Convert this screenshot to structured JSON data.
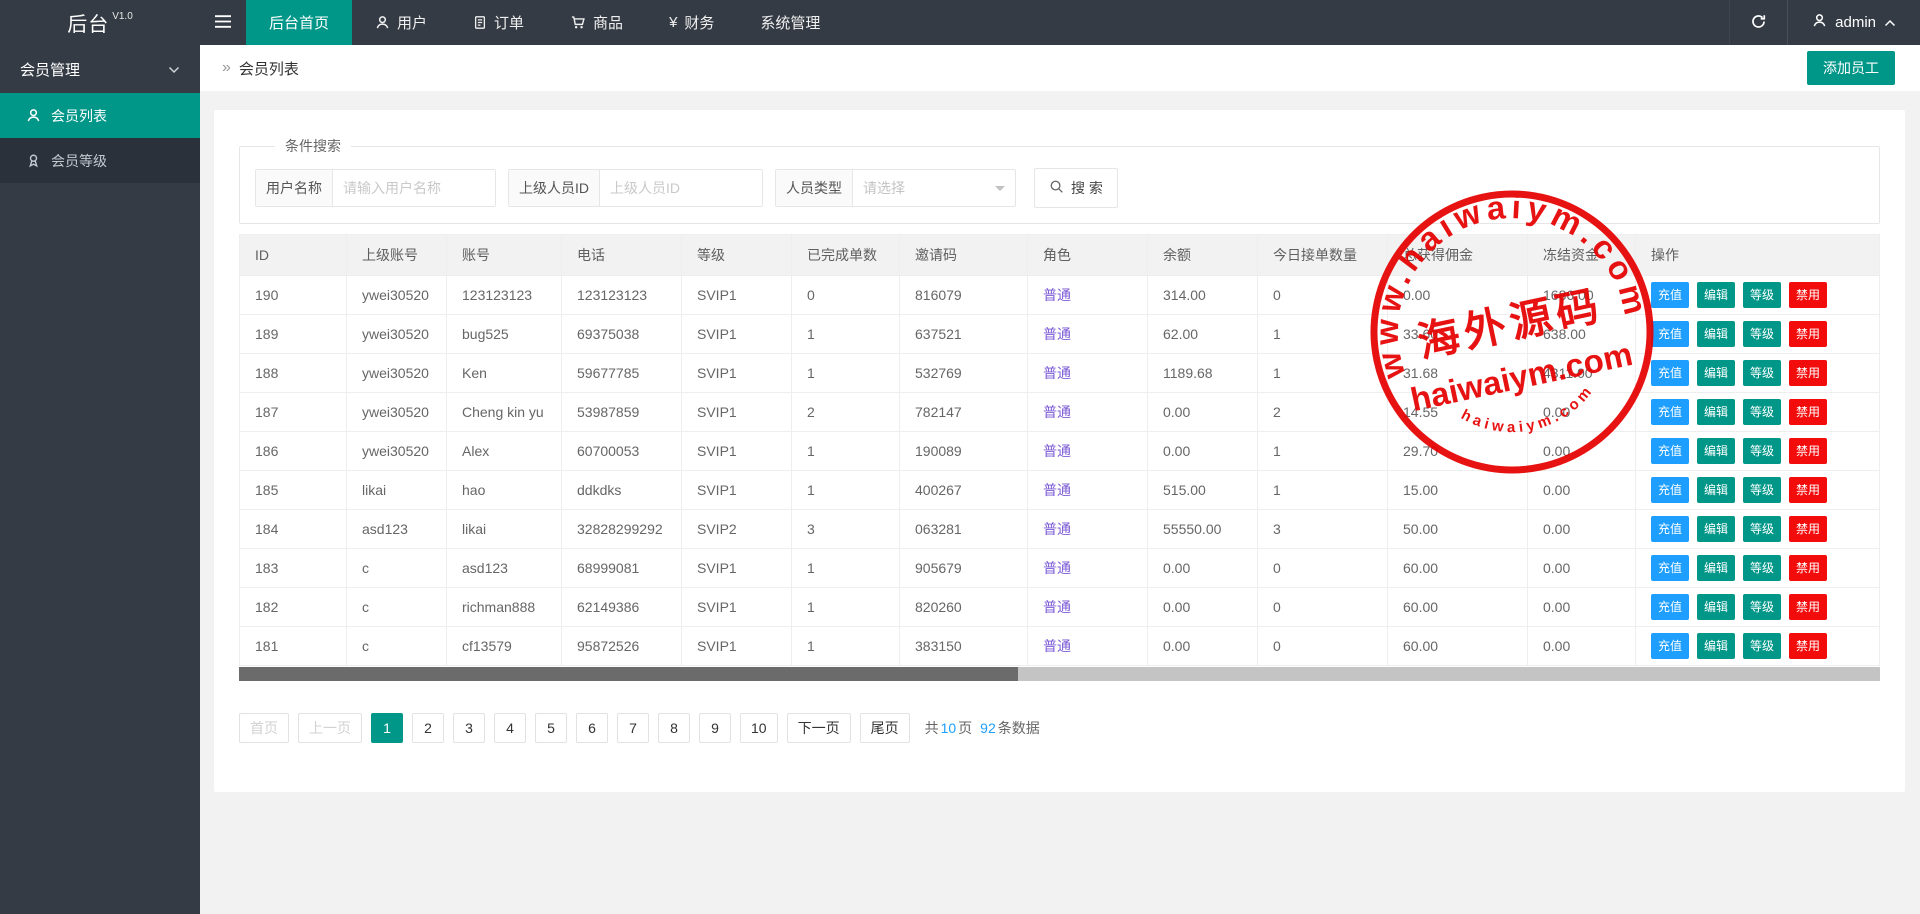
{
  "header": {
    "brand": "后台",
    "version": "V1.0",
    "nav": [
      {
        "name": "nav-home",
        "label": "后台首页",
        "icon": null,
        "active": true
      },
      {
        "name": "nav-users",
        "label": "用户",
        "icon": "user-icon",
        "active": false
      },
      {
        "name": "nav-orders",
        "label": "订单",
        "icon": "doc-icon",
        "active": false
      },
      {
        "name": "nav-goods",
        "label": "商品",
        "icon": "cart-icon",
        "active": false
      },
      {
        "name": "nav-finance",
        "label": "财务",
        "icon": "yen-icon",
        "active": false
      },
      {
        "name": "nav-system",
        "label": "系统管理",
        "icon": null,
        "active": false
      }
    ],
    "user": "admin"
  },
  "sidebar": {
    "group_label": "会员管理",
    "items": [
      {
        "name": "sidebar-item-member-list",
        "label": "会员列表",
        "icon": "user-icon",
        "active": true
      },
      {
        "name": "sidebar-item-member-level",
        "label": "会员等级",
        "icon": "medal-icon",
        "active": false
      }
    ]
  },
  "breadcrumb": {
    "separator": "»",
    "title": "会员列表"
  },
  "toolbar": {
    "add_button": "添加员工"
  },
  "search": {
    "legend": "条件搜索",
    "fields": [
      {
        "label": "用户名称",
        "placeholder": "请输入用户名称",
        "type": "input"
      },
      {
        "label": "上级人员ID",
        "placeholder": "上级人员ID",
        "type": "input"
      },
      {
        "label": "人员类型",
        "placeholder": "请选择",
        "type": "select"
      }
    ],
    "button_label": "搜 索"
  },
  "table": {
    "columns": [
      "ID",
      "上级账号",
      "账号",
      "电话",
      "等级",
      "已完成单数",
      "邀请码",
      "角色",
      "余额",
      "今日接单数量",
      "总获得佣金",
      "冻结资金",
      "操作"
    ],
    "rows": [
      {
        "id": "190",
        "parent_account": "ywei30520",
        "account": "123123123",
        "phone": "123123123",
        "level": "SVIP1",
        "completed_orders": "0",
        "invite_code": "816079",
        "role": "普通",
        "balance": "314.00",
        "today_orders": "0",
        "total_commission": "0.00",
        "frozen_amount": "1686.00"
      },
      {
        "id": "189",
        "parent_account": "ywei30520",
        "account": "bug525",
        "phone": "69375038",
        "level": "SVIP1",
        "completed_orders": "1",
        "invite_code": "637521",
        "role": "普通",
        "balance": "62.00",
        "today_orders": "1",
        "total_commission": "33.60",
        "frozen_amount": "638.00"
      },
      {
        "id": "188",
        "parent_account": "ywei30520",
        "account": "Ken",
        "phone": "59677785",
        "level": "SVIP1",
        "completed_orders": "1",
        "invite_code": "532769",
        "role": "普通",
        "balance": "1189.68",
        "today_orders": "1",
        "total_commission": "31.68",
        "frozen_amount": "4311.00"
      },
      {
        "id": "187",
        "parent_account": "ywei30520",
        "account": "Cheng kin yu",
        "phone": "53987859",
        "level": "SVIP1",
        "completed_orders": "2",
        "invite_code": "782147",
        "role": "普通",
        "balance": "0.00",
        "today_orders": "2",
        "total_commission": "14.55",
        "frozen_amount": "0.00"
      },
      {
        "id": "186",
        "parent_account": "ywei30520",
        "account": "Alex",
        "phone": "60700053",
        "level": "SVIP1",
        "completed_orders": "1",
        "invite_code": "190089",
        "role": "普通",
        "balance": "0.00",
        "today_orders": "1",
        "total_commission": "29.70",
        "frozen_amount": "0.00"
      },
      {
        "id": "185",
        "parent_account": "likai",
        "account": "hao",
        "phone": "ddkdks",
        "level": "SVIP1",
        "completed_orders": "1",
        "invite_code": "400267",
        "role": "普通",
        "balance": "515.00",
        "today_orders": "1",
        "total_commission": "15.00",
        "frozen_amount": "0.00"
      },
      {
        "id": "184",
        "parent_account": "asd123",
        "account": "likai",
        "phone": "32828299292",
        "level": "SVIP2",
        "completed_orders": "3",
        "invite_code": "063281",
        "role": "普通",
        "balance": "55550.00",
        "today_orders": "3",
        "total_commission": "50.00",
        "frozen_amount": "0.00"
      },
      {
        "id": "183",
        "parent_account": "c",
        "account": "asd123",
        "phone": "68999081",
        "level": "SVIP1",
        "completed_orders": "1",
        "invite_code": "905679",
        "role": "普通",
        "balance": "0.00",
        "today_orders": "0",
        "total_commission": "60.00",
        "frozen_amount": "0.00"
      },
      {
        "id": "182",
        "parent_account": "c",
        "account": "richman888",
        "phone": "62149386",
        "level": "SVIP1",
        "completed_orders": "1",
        "invite_code": "820260",
        "role": "普通",
        "balance": "0.00",
        "today_orders": "0",
        "total_commission": "60.00",
        "frozen_amount": "0.00"
      },
      {
        "id": "181",
        "parent_account": "c",
        "account": "cf13579",
        "phone": "95872526",
        "level": "SVIP1",
        "completed_orders": "1",
        "invite_code": "383150",
        "role": "普通",
        "balance": "0.00",
        "today_orders": "0",
        "total_commission": "60.00",
        "frozen_amount": "0.00"
      }
    ],
    "actions": [
      {
        "name": "recharge-button",
        "label": "充值",
        "color": "#1E9FFF"
      },
      {
        "name": "edit-button",
        "label": "编辑",
        "color": "#009688"
      },
      {
        "name": "level-button",
        "label": "等级",
        "color": "#009688"
      },
      {
        "name": "disable-button",
        "label": "禁用",
        "color": "#f20c0c"
      }
    ]
  },
  "pagination": {
    "first": "首页",
    "prev": "上一页",
    "pages": [
      "1",
      "2",
      "3",
      "4",
      "5",
      "6",
      "7",
      "8",
      "9",
      "10"
    ],
    "active_page": "1",
    "next": "下一页",
    "last": "尾页",
    "summary": {
      "prefix": "共",
      "total_pages": "10",
      "pages_unit": "页",
      "total_count": "92",
      "count_unit": "条数据"
    }
  },
  "watermark": {
    "top_arc": "www.haiwaiym.com",
    "center_cn": "海外源码",
    "center_en": "haiwaiym.com",
    "bottom_arc": "haiwaiym.com",
    "color": "#e60000"
  },
  "colors": {
    "accent": "#009688",
    "blue": "#1E9FFF",
    "danger": "#f20c0c",
    "purple": "#7b5ad6",
    "stamp_red": "#e60000",
    "topbar_bg": "#343b44",
    "submenu_bg": "#2a313a"
  }
}
